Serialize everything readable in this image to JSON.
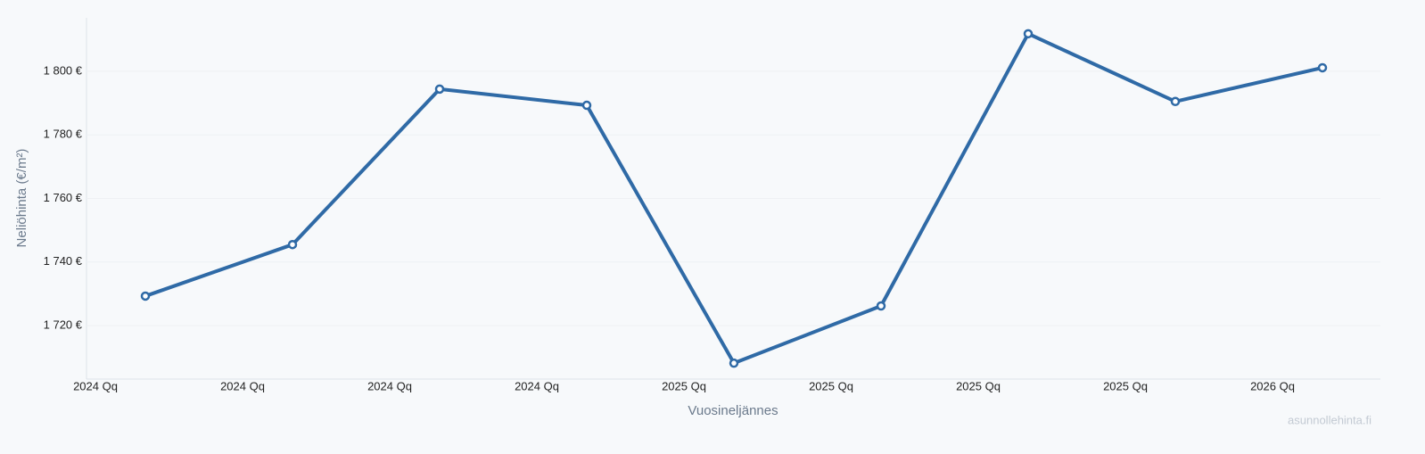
{
  "chart_data": {
    "type": "line",
    "x_label": "Vuosineljännes",
    "y_label": "Neliöhinta (€/m²)",
    "watermark": "asunnollehinta.fi",
    "categories": [
      null,
      null,
      null,
      null,
      null,
      null,
      null,
      null,
      null
    ],
    "xtick_labels": [
      "2024 Qq",
      "2024 Qq",
      "2024 Qq",
      "2024 Qq",
      "2025 Qq",
      "2025 Qq",
      "2025 Qq",
      "2025 Qq",
      "2026 Qq"
    ],
    "series": [
      {
        "color": "#2f6aa6",
        "values": [
          1729.3,
          1745.5,
          1794.4,
          1789.3,
          1708.2,
          1726.2,
          1811.8,
          1790.5,
          1801.1
        ]
      }
    ],
    "ylim": [
      1703.2,
      1816.8
    ],
    "yticks": [
      {
        "value": 1720,
        "label": "1 720 €"
      },
      {
        "value": 1740,
        "label": "1 740 €"
      },
      {
        "value": 1760,
        "label": "1 760 €"
      },
      {
        "value": 1780,
        "label": "1 780 €"
      },
      {
        "value": 1800,
        "label": "1 800 €"
      }
    ],
    "grid": true
  }
}
